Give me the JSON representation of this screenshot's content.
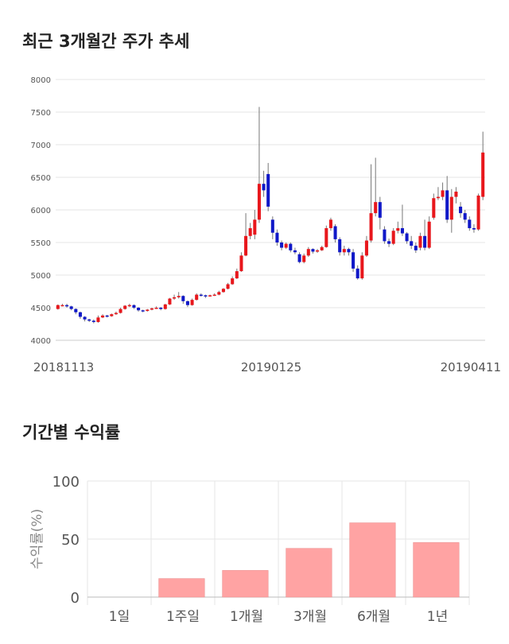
{
  "sections": {
    "price_trend_title": "최근 3개월간 주가 추세",
    "returns_title": "기간별 수익률"
  },
  "colors": {
    "up": "#e8171c",
    "down": "#1018c8",
    "bar": "#ffa3a3",
    "grid": "#e6e6e6"
  },
  "chart_data": [
    {
      "type": "candlestick",
      "title": "최근 3개월간 주가 추세",
      "ylim": [
        4000,
        8000
      ],
      "yticks": [
        4000,
        4500,
        5000,
        5500,
        6000,
        6500,
        7000,
        7500,
        8000
      ],
      "x_tick_labels": [
        "20181113",
        "20190125",
        "20190411"
      ],
      "grid": true,
      "candles": [
        [
          4480,
          4540,
          4470,
          4550
        ],
        [
          4540,
          4540,
          4520,
          4560
        ],
        [
          4540,
          4520,
          4500,
          4560
        ],
        [
          4520,
          4480,
          4460,
          4530
        ],
        [
          4480,
          4430,
          4400,
          4490
        ],
        [
          4430,
          4360,
          4330,
          4440
        ],
        [
          4360,
          4320,
          4290,
          4370
        ],
        [
          4320,
          4300,
          4280,
          4330
        ],
        [
          4300,
          4280,
          4260,
          4320
        ],
        [
          4280,
          4350,
          4270,
          4380
        ],
        [
          4350,
          4380,
          4340,
          4400
        ],
        [
          4380,
          4370,
          4350,
          4390
        ],
        [
          4370,
          4400,
          4360,
          4410
        ],
        [
          4400,
          4420,
          4390,
          4440
        ],
        [
          4420,
          4480,
          4410,
          4500
        ],
        [
          4480,
          4530,
          4470,
          4540
        ],
        [
          4530,
          4540,
          4510,
          4560
        ],
        [
          4540,
          4500,
          4480,
          4550
        ],
        [
          4500,
          4460,
          4440,
          4510
        ],
        [
          4460,
          4450,
          4430,
          4470
        ],
        [
          4450,
          4470,
          4440,
          4480
        ],
        [
          4470,
          4490,
          4460,
          4500
        ],
        [
          4490,
          4500,
          4480,
          4520
        ],
        [
          4500,
          4480,
          4460,
          4510
        ],
        [
          4480,
          4550,
          4470,
          4560
        ],
        [
          4550,
          4640,
          4540,
          4650
        ],
        [
          4640,
          4660,
          4620,
          4700
        ],
        [
          4660,
          4680,
          4640,
          4740
        ],
        [
          4680,
          4600,
          4560,
          4690
        ],
        [
          4600,
          4540,
          4510,
          4610
        ],
        [
          4540,
          4620,
          4530,
          4640
        ],
        [
          4620,
          4700,
          4610,
          4720
        ],
        [
          4700,
          4690,
          4670,
          4720
        ],
        [
          4690,
          4680,
          4650,
          4700
        ],
        [
          4680,
          4690,
          4670,
          4700
        ],
        [
          4690,
          4700,
          4680,
          4720
        ],
        [
          4700,
          4740,
          4690,
          4760
        ],
        [
          4740,
          4790,
          4730,
          4800
        ],
        [
          4790,
          4860,
          4780,
          4880
        ],
        [
          4860,
          4950,
          4850,
          4980
        ],
        [
          4950,
          5060,
          4940,
          5100
        ],
        [
          5060,
          5300,
          5050,
          5350
        ],
        [
          5300,
          5600,
          5290,
          5950
        ],
        [
          5600,
          5720,
          5550,
          5800
        ],
        [
          5620,
          5850,
          5550,
          6000
        ],
        [
          5850,
          6400,
          5800,
          7580
        ],
        [
          6400,
          6300,
          6200,
          6600
        ],
        [
          6550,
          6050,
          5980,
          6720
        ],
        [
          5850,
          5650,
          5550,
          5900
        ],
        [
          5650,
          5500,
          5450,
          5700
        ],
        [
          5500,
          5420,
          5380,
          5530
        ],
        [
          5420,
          5480,
          5400,
          5500
        ],
        [
          5480,
          5380,
          5350,
          5500
        ],
        [
          5380,
          5350,
          5320,
          5420
        ],
        [
          5320,
          5200,
          5180,
          5350
        ],
        [
          5200,
          5300,
          5180,
          5330
        ],
        [
          5300,
          5400,
          5280,
          5430
        ],
        [
          5400,
          5360,
          5330,
          5410
        ],
        [
          5360,
          5380,
          5340,
          5400
        ],
        [
          5380,
          5430,
          5370,
          5450
        ],
        [
          5430,
          5720,
          5420,
          5760
        ],
        [
          5720,
          5850,
          5680,
          5880
        ],
        [
          5750,
          5550,
          5500,
          5780
        ],
        [
          5550,
          5350,
          5300,
          5580
        ],
        [
          5350,
          5400,
          5300,
          5450
        ],
        [
          5400,
          5350,
          5300,
          5420
        ],
        [
          5350,
          5100,
          5050,
          5400
        ],
        [
          5100,
          4950,
          4930,
          5150
        ],
        [
          4950,
          5300,
          4930,
          5350
        ],
        [
          5300,
          5530,
          5280,
          5600
        ],
        [
          5530,
          5950,
          5500,
          6700
        ],
        [
          5950,
          6120,
          5900,
          6800
        ],
        [
          6120,
          5880,
          5700,
          6200
        ],
        [
          5700,
          5520,
          5480,
          5750
        ],
        [
          5520,
          5480,
          5430,
          5560
        ],
        [
          5480,
          5680,
          5460,
          5720
        ],
        [
          5680,
          5720,
          5640,
          5820
        ],
        [
          5720,
          5640,
          5600,
          6080
        ],
        [
          5640,
          5520,
          5480,
          5660
        ],
        [
          5520,
          5450,
          5400,
          5600
        ],
        [
          5450,
          5380,
          5340,
          5500
        ],
        [
          5420,
          5600,
          5380,
          5650
        ],
        [
          5600,
          5420,
          5380,
          5850
        ],
        [
          5420,
          5820,
          5400,
          5900
        ],
        [
          5880,
          6180,
          5850,
          6250
        ],
        [
          6180,
          6200,
          6150,
          6350
        ],
        [
          6200,
          6300,
          6150,
          6420
        ],
        [
          6300,
          5850,
          5800,
          6520
        ],
        [
          5850,
          6200,
          5650,
          6320
        ],
        [
          6200,
          6280,
          6100,
          6350
        ],
        [
          6050,
          5950,
          5880,
          6120
        ],
        [
          5950,
          5850,
          5800,
          6000
        ],
        [
          5850,
          5720,
          5680,
          5900
        ],
        [
          5720,
          5700,
          5650,
          5780
        ],
        [
          5700,
          6220,
          5680,
          6250
        ],
        [
          6200,
          6880,
          6150,
          7200
        ]
      ]
    },
    {
      "type": "bar",
      "title": "기간별 수익률",
      "categories": [
        "1일",
        "1주일",
        "1개월",
        "3개월",
        "6개월",
        "1년"
      ],
      "values": [
        0,
        16,
        23,
        42,
        64,
        47
      ],
      "ylabel": "수익률(%)",
      "ylim": [
        0,
        100
      ],
      "yticks": [
        0,
        50,
        100
      ],
      "grid": true
    }
  ]
}
